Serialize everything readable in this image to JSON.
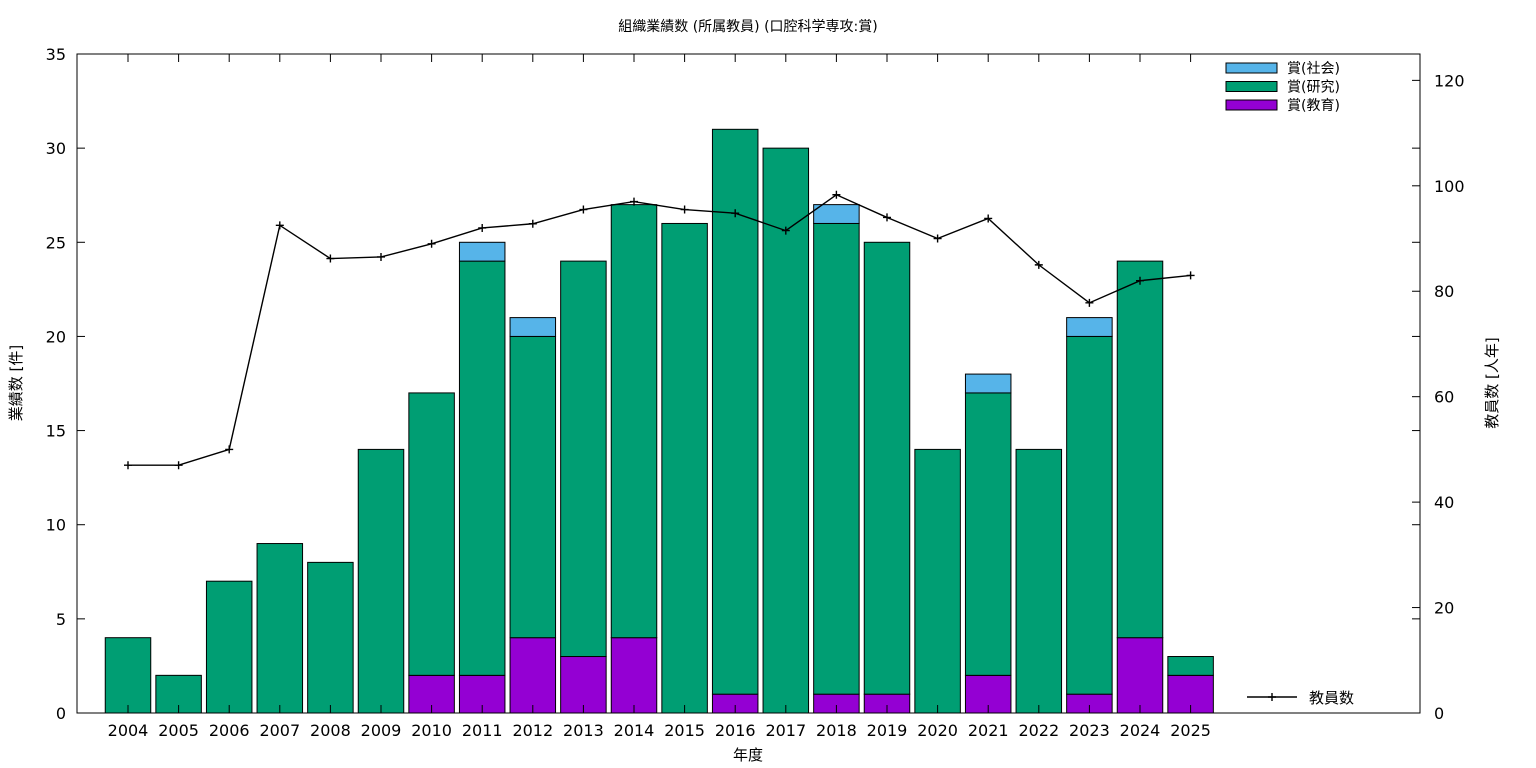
{
  "chart_data": {
    "type": "bar",
    "title": "組織業績数 (所属教員) (口腔科学専攻:賞)",
    "xlabel": "年度",
    "ylabel": "業績数 [件]",
    "y2label": "教員数 [人年]",
    "categories": [
      "2004",
      "2005",
      "2006",
      "2007",
      "2008",
      "2009",
      "2010",
      "2011",
      "2012",
      "2013",
      "2014",
      "2015",
      "2016",
      "2017",
      "2018",
      "2019",
      "2020",
      "2021",
      "2022",
      "2023",
      "2024",
      "2025"
    ],
    "ylim": [
      0,
      35
    ],
    "yticks": [
      0,
      5,
      10,
      15,
      20,
      25,
      30,
      35
    ],
    "y2lim": [
      0,
      125
    ],
    "y2ticks": [
      0,
      20,
      40,
      60,
      80,
      100,
      120
    ],
    "stacked": true,
    "series": [
      {
        "name": "賞(教育)",
        "color": "#9400d3",
        "values": [
          0,
          0,
          0,
          0,
          0,
          0,
          2,
          2,
          4,
          3,
          4,
          0,
          1,
          0,
          1,
          1,
          0,
          2,
          0,
          1,
          4,
          2
        ]
      },
      {
        "name": "賞(研究)",
        "color": "#009e73",
        "values": [
          4,
          2,
          7,
          9,
          8,
          14,
          15,
          22,
          16,
          21,
          23,
          26,
          30,
          30,
          25,
          24,
          14,
          15,
          14,
          19,
          20,
          1
        ]
      },
      {
        "name": "賞(社会)",
        "color": "#56b4e9",
        "values": [
          0,
          0,
          0,
          0,
          0,
          0,
          0,
          1,
          1,
          0,
          0,
          0,
          0,
          0,
          1,
          0,
          0,
          1,
          0,
          1,
          0,
          0
        ]
      }
    ],
    "line_series": {
      "name": "教員数",
      "axis": "y2",
      "color": "#000000",
      "values": [
        47,
        47,
        50,
        92.5,
        86.2,
        86.5,
        89,
        92,
        92.8,
        95.5,
        97,
        95.5,
        94.8,
        91.5,
        98.3,
        94,
        90,
        93.8,
        85,
        77.8,
        82,
        83
      ]
    },
    "legend_position": "top-right",
    "line_legend_position": "bottom-right",
    "grid": false
  }
}
